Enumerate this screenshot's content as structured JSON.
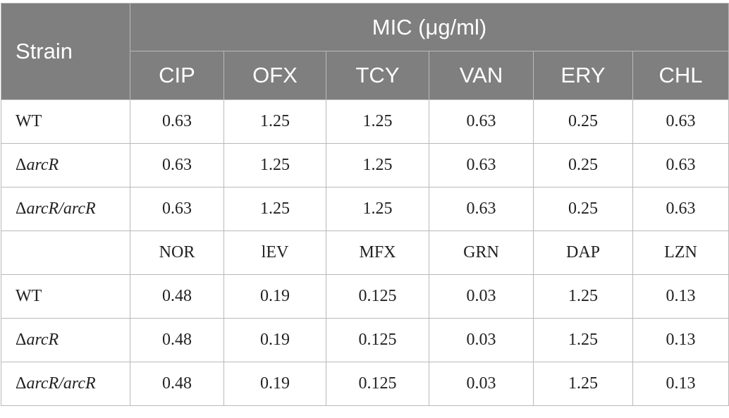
{
  "header": {
    "strain_label": "Strain",
    "mic_label": "MIC (μg/ml)",
    "drugs": [
      "CIP",
      "OFX",
      "TCY",
      "VAN",
      "ERY",
      "CHL"
    ]
  },
  "group1": {
    "rows": [
      {
        "strain": "WT",
        "values": [
          "0.63",
          "1.25",
          "1.25",
          "0.63",
          "0.25",
          "0.63"
        ]
      },
      {
        "strain_symbol": "Δ",
        "strain": "arcR",
        "values": [
          "0.63",
          "1.25",
          "1.25",
          "0.63",
          "0.25",
          "0.63"
        ]
      },
      {
        "strain_symbol": "Δ",
        "strain": "arcR/arcR",
        "values": [
          "0.63",
          "1.25",
          "1.25",
          "0.63",
          "0.25",
          "0.63"
        ]
      }
    ]
  },
  "group2": {
    "drugs": [
      "NOR",
      "lEV",
      "MFX",
      "GRN",
      "DAP",
      "LZN"
    ],
    "rows": [
      {
        "strain": "WT",
        "values": [
          "0.48",
          "0.19",
          "0.125",
          "0.03",
          "1.25",
          "0.13"
        ]
      },
      {
        "strain_symbol": "Δ",
        "strain": "arcR",
        "values": [
          "0.48",
          "0.19",
          "0.125",
          "0.03",
          "1.25",
          "0.13"
        ]
      },
      {
        "strain_symbol": "Δ",
        "strain": "arcR/arcR",
        "values": [
          "0.48",
          "0.19",
          "0.125",
          "0.03",
          "1.25",
          "0.13"
        ]
      }
    ]
  }
}
